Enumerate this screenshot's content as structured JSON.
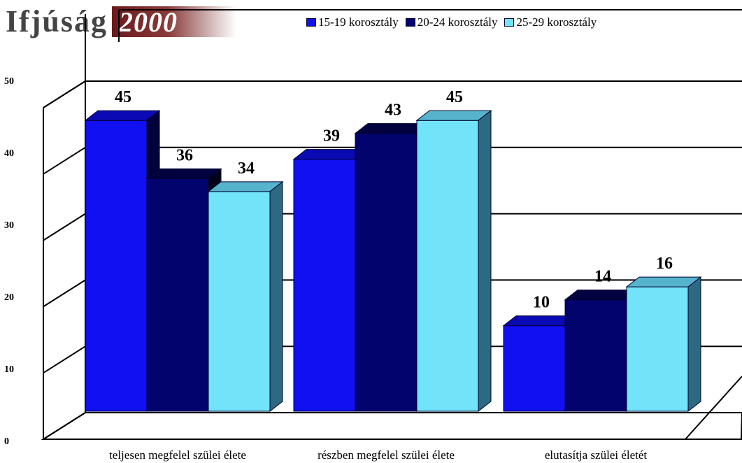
{
  "header": {
    "brand_text": "Ifjúság",
    "brand_year": "2000"
  },
  "colors": {
    "series": [
      "#1010f0",
      "#03036e",
      "#72e4fa"
    ],
    "series_top": [
      "#0a0ab4",
      "#020240",
      "#55b4cc"
    ],
    "series_side": [
      "#02023a",
      "#010118",
      "#2c6a82"
    ],
    "floor": "#ffffff",
    "wall": "#ffffff",
    "axis": "#000000"
  },
  "chart_data": {
    "type": "bar",
    "title": "",
    "xlabel": "",
    "ylabel": "",
    "categories": [
      "teljesen megfelel szülei élete",
      "részben megfelel szülei élete",
      "elutasítja szülei életét"
    ],
    "series": [
      {
        "name": "15-19 korosztály",
        "values": [
          45,
          39,
          10
        ]
      },
      {
        "name": "20-24 korosztály",
        "values": [
          36,
          43,
          14
        ]
      },
      {
        "name": "25-29 korosztály",
        "values": [
          34,
          45,
          16
        ]
      }
    ],
    "ylim": [
      0,
      50
    ],
    "yticks": [
      "0",
      "10",
      "20",
      "30",
      "40",
      "50"
    ],
    "grid": true,
    "legend": "top-right"
  }
}
